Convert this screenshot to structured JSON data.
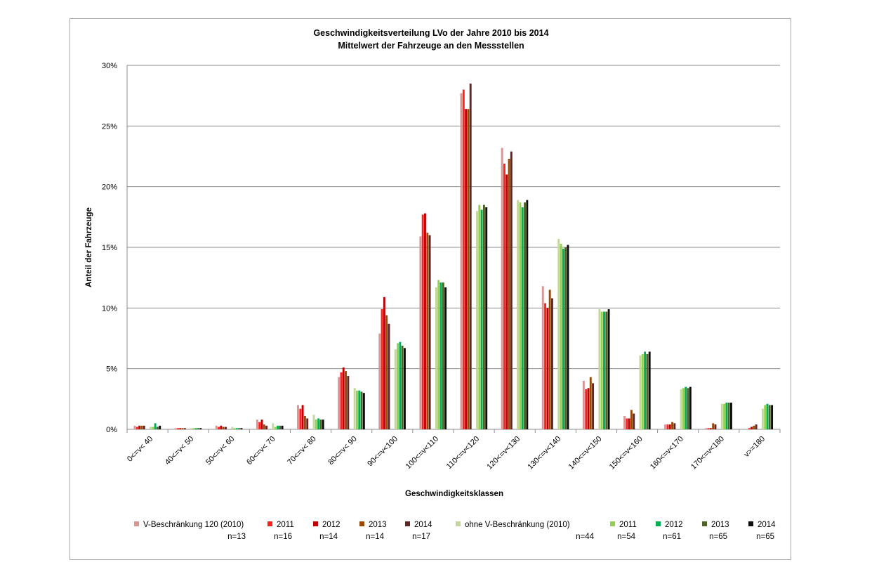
{
  "chart_data": {
    "type": "bar",
    "title": [
      "Geschwindigkeitsverteilung LVo der Jahre 2010 bis 2014",
      "Mittelwert der Fahrzeuge an den Messstellen"
    ],
    "xlabel": "Geschwindigkeitsklassen",
    "ylabel": "Anteil der Fahrzeuge",
    "ylim": [
      0,
      30
    ],
    "yticks": [
      0,
      5,
      10,
      15,
      20,
      25,
      30
    ],
    "ytick_labels": [
      "0%",
      "5%",
      "10%",
      "15%",
      "20%",
      "25%",
      "30%"
    ],
    "grid": true,
    "legend_position": "bottom",
    "categories": [
      "0<=v< 40",
      "40<=v< 50",
      "50<=v< 60",
      "60<=v< 70",
      "70<=v< 80",
      "80<=v< 90",
      "90<=v<100",
      "100<=v<110",
      "110<=v<120",
      "120<=v<130",
      "130<=v<140",
      "140<=v<150",
      "150<=v<160",
      "160<=v<170",
      "170<=v<180",
      "v>=180"
    ],
    "series": [
      {
        "name": "V-Beschränkung 120 (2010)",
        "n": "n=13",
        "color": "#d99594",
        "values": [
          0.3,
          0.1,
          0.3,
          0.8,
          2.0,
          4.3,
          7.9,
          15.9,
          27.7,
          23.2,
          11.8,
          4.0,
          1.1,
          0.4,
          0.1,
          0.0
        ]
      },
      {
        "name": "2011",
        "n": "n=16",
        "color": "#ff2020",
        "values": [
          0.2,
          0.1,
          0.2,
          0.6,
          1.7,
          4.7,
          9.9,
          17.7,
          28.0,
          21.9,
          10.4,
          3.3,
          0.9,
          0.4,
          0.1,
          0.1
        ]
      },
      {
        "name": "2012",
        "n": "n=14",
        "color": "#c00000",
        "values": [
          0.3,
          0.1,
          0.3,
          0.8,
          2.0,
          5.1,
          10.9,
          17.8,
          26.4,
          21.0,
          10.0,
          3.4,
          0.9,
          0.4,
          0.1,
          0.2
        ]
      },
      {
        "name": "2013",
        "n": "n=14",
        "color": "#984807",
        "values": [
          0.3,
          0.1,
          0.2,
          0.4,
          1.1,
          4.8,
          9.4,
          16.2,
          26.4,
          22.3,
          11.5,
          4.3,
          1.6,
          0.6,
          0.5,
          0.3
        ]
      },
      {
        "name": "2014",
        "n": "n=17",
        "color": "#632523",
        "values": [
          0.3,
          0.1,
          0.2,
          0.3,
          0.9,
          4.4,
          8.7,
          16.0,
          28.5,
          22.9,
          10.8,
          3.8,
          1.3,
          0.5,
          0.4,
          0.4
        ]
      },
      {
        "name": "ohne V-Beschränkung (2010)",
        "n": "n=44",
        "color": "#c4d79b",
        "values": [
          0.2,
          0.1,
          0.2,
          0.5,
          1.2,
          3.4,
          6.6,
          11.7,
          18.0,
          18.9,
          15.7,
          9.9,
          6.1,
          3.3,
          2.1,
          1.7
        ]
      },
      {
        "name": "2011",
        "n": "n=54",
        "color": "#92d050",
        "values": [
          0.2,
          0.1,
          0.1,
          0.2,
          0.8,
          3.2,
          7.1,
          12.3,
          18.5,
          18.7,
          15.3,
          9.7,
          6.2,
          3.4,
          2.1,
          2.0
        ]
      },
      {
        "name": "2012",
        "n": "n=61",
        "color": "#00b050",
        "values": [
          0.5,
          0.1,
          0.1,
          0.3,
          0.9,
          3.2,
          7.2,
          12.1,
          18.1,
          18.3,
          14.9,
          9.7,
          6.4,
          3.5,
          2.2,
          2.1
        ]
      },
      {
        "name": "2013",
        "n": "n=65",
        "color": "#4f6228",
        "values": [
          0.2,
          0.1,
          0.1,
          0.3,
          0.8,
          3.1,
          6.9,
          12.1,
          18.5,
          18.7,
          15.0,
          9.7,
          6.2,
          3.4,
          2.2,
          2.0
        ]
      },
      {
        "name": "2014",
        "n": "n=65",
        "color": "#0d0d0d",
        "values": [
          0.3,
          0.1,
          0.1,
          0.3,
          0.8,
          3.0,
          6.7,
          11.7,
          18.3,
          18.9,
          15.2,
          9.9,
          6.4,
          3.5,
          2.2,
          2.0
        ]
      }
    ]
  }
}
